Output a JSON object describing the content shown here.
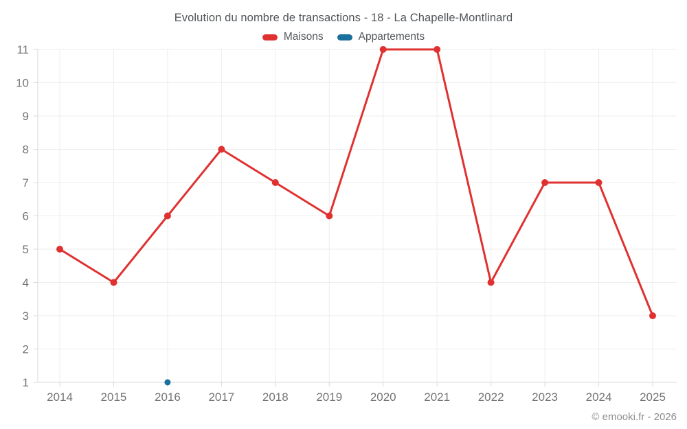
{
  "title": "Evolution du nombre de transactions - 18 - La Chapelle-Montlinard",
  "copyright": "© emooki.fr - 2026",
  "colors": {
    "maisons": "#e03131",
    "appartements": "#1a6f9c",
    "grid": "#ededed",
    "axis": "#d8d8d8",
    "tick_text": "#757575",
    "title_text": "#4f5357"
  },
  "chart_data": {
    "type": "line",
    "title": "Evolution du nombre de transactions - 18 - La Chapelle-Montlinard",
    "categories": [
      "2014",
      "2015",
      "2016",
      "2017",
      "2018",
      "2019",
      "2020",
      "2021",
      "2022",
      "2023",
      "2024",
      "2025"
    ],
    "series": [
      {
        "name": "Maisons",
        "color": "#e03131",
        "values": [
          5,
          4,
          6,
          8,
          7,
          6,
          11,
          11,
          4,
          7,
          7,
          3
        ]
      },
      {
        "name": "Appartements",
        "color": "#1a6f9c",
        "values": [
          null,
          null,
          1,
          null,
          null,
          null,
          null,
          null,
          null,
          null,
          null,
          null
        ]
      }
    ],
    "xlabel": "",
    "ylabel": "",
    "ylim": [
      1,
      11
    ],
    "yticks": [
      1,
      2,
      3,
      4,
      5,
      6,
      7,
      8,
      9,
      10,
      11
    ],
    "grid": true,
    "legend_position": "top"
  }
}
